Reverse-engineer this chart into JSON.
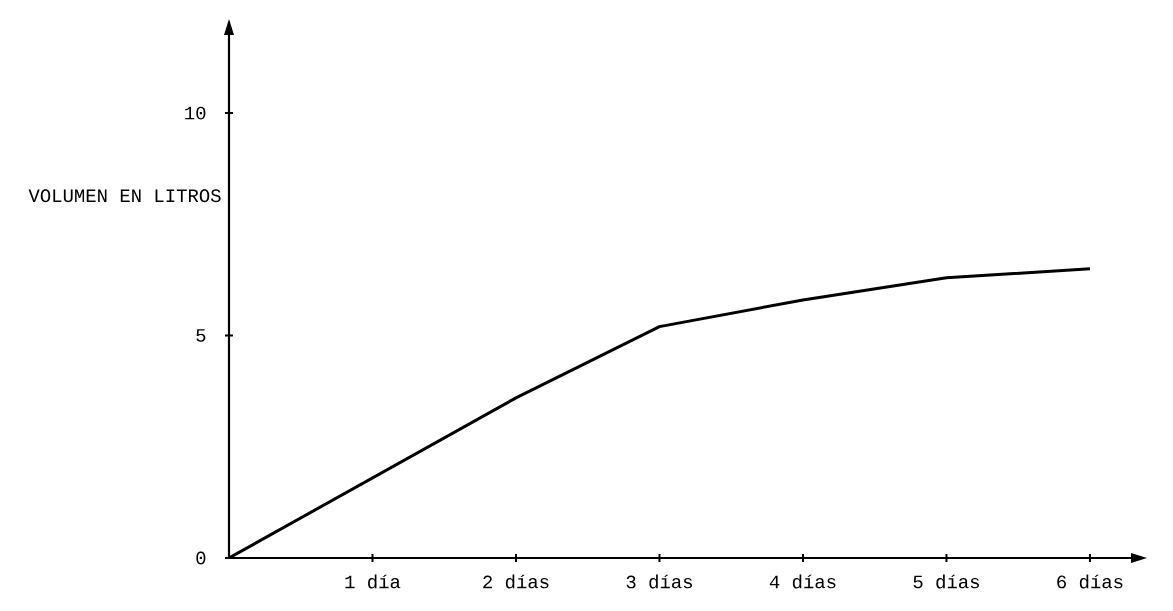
{
  "chart_data": {
    "type": "line",
    "ylabel": "VOLUMEN EN LITROS",
    "x": [
      0,
      1,
      2,
      3,
      4,
      5,
      6
    ],
    "series": [
      {
        "color": "#000000",
        "values": [
          0,
          1.8,
          3.6,
          5.2,
          5.8,
          6.3,
          6.5
        ]
      }
    ],
    "xlim": [
      0,
      6.3
    ],
    "ylim": [
      0,
      11.8
    ],
    "xticks": [
      {
        "value": 1,
        "label": "1 día"
      },
      {
        "value": 2,
        "label": "2 días"
      },
      {
        "value": 3,
        "label": "3 días"
      },
      {
        "value": 4,
        "label": "4 días"
      },
      {
        "value": 5,
        "label": "5 días"
      },
      {
        "value": 6,
        "label": "6 días"
      }
    ],
    "yticks": [
      0,
      5,
      10
    ],
    "grid": false,
    "marker": "none",
    "line_style": "solid"
  }
}
